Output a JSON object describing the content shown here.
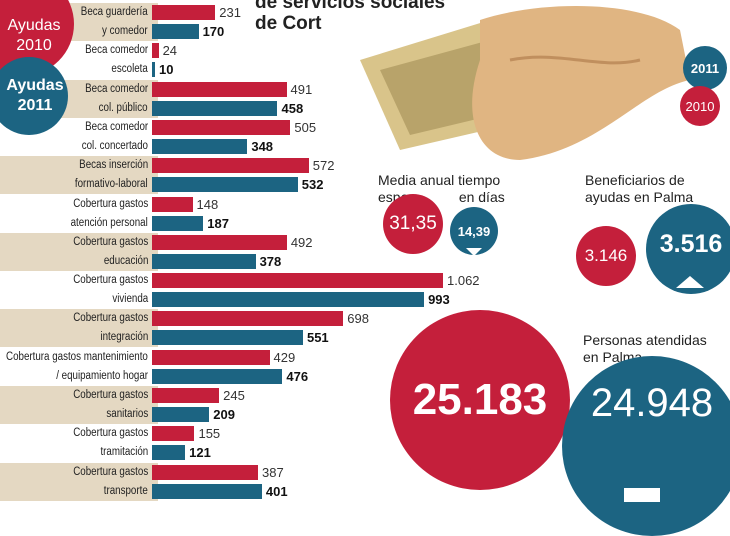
{
  "colors": {
    "y2010": "#c41f3b",
    "y2011": "#1c6482",
    "band": "#e4d8c2"
  },
  "title": {
    "line1": "de servicios sociales",
    "line2": "de Cort"
  },
  "legend": {
    "a2010": [
      "Ayudas",
      "2010"
    ],
    "a2011": [
      "Ayudas",
      "2011"
    ],
    "c2011": "2011",
    "c2010": "2010"
  },
  "chart_data": {
    "type": "bar",
    "orientation": "horizontal",
    "title": "",
    "xlabel": "",
    "ylabel": "",
    "xlim": [
      0,
      1062
    ],
    "categories": [
      [
        "Beca guardería",
        "y comedor"
      ],
      [
        "Beca comedor",
        "escoleta"
      ],
      [
        "Beca comedor",
        "col. público"
      ],
      [
        "Beca comedor",
        "col. concertado"
      ],
      [
        "Becas inserción",
        "formativo-laboral"
      ],
      [
        "Cobertura gastos",
        "atención personal"
      ],
      [
        "Cobertura gastos",
        "educación"
      ],
      [
        "Cobertura gastos",
        "vivienda"
      ],
      [
        "Cobertura gastos",
        "integración"
      ],
      [
        "Cobertura gastos mantenimiento",
        "/ equipamiento hogar"
      ],
      [
        "Cobertura gastos",
        "sanitarios"
      ],
      [
        "Cobertura gastos",
        "tramitación"
      ],
      [
        "Cobertura gastos",
        "transporte"
      ]
    ],
    "series": [
      {
        "name": "2010",
        "values": [
          231,
          24,
          491,
          505,
          572,
          148,
          492,
          1062,
          698,
          429,
          245,
          155,
          387
        ],
        "labels": [
          "231",
          "24",
          "491",
          "505",
          "572",
          "148",
          "492",
          "1.062",
          "698",
          "429",
          "245",
          "155",
          "387"
        ]
      },
      {
        "name": "2011",
        "values": [
          170,
          10,
          458,
          348,
          532,
          187,
          378,
          993,
          551,
          476,
          209,
          121,
          401
        ],
        "labels": [
          "170",
          "10",
          "458",
          "348",
          "532",
          "187",
          "378",
          "993",
          "551",
          "476",
          "209",
          "121",
          "401"
        ]
      }
    ]
  },
  "waiting": {
    "title1": "Media anual tiempo",
    "title2a": "espera",
    "title2b": "en días",
    "v2010": "31,35",
    "v2011": "14,39"
  },
  "beneficiaries": {
    "title1": "Beneficiarios de",
    "title2": "ayudas en Palma",
    "v2010": "3.146",
    "v2011": "3.516"
  },
  "attended": {
    "title1": "Personas atendidas",
    "title2": "en Palma",
    "v2010": "25.183",
    "v2011": "24.948"
  }
}
